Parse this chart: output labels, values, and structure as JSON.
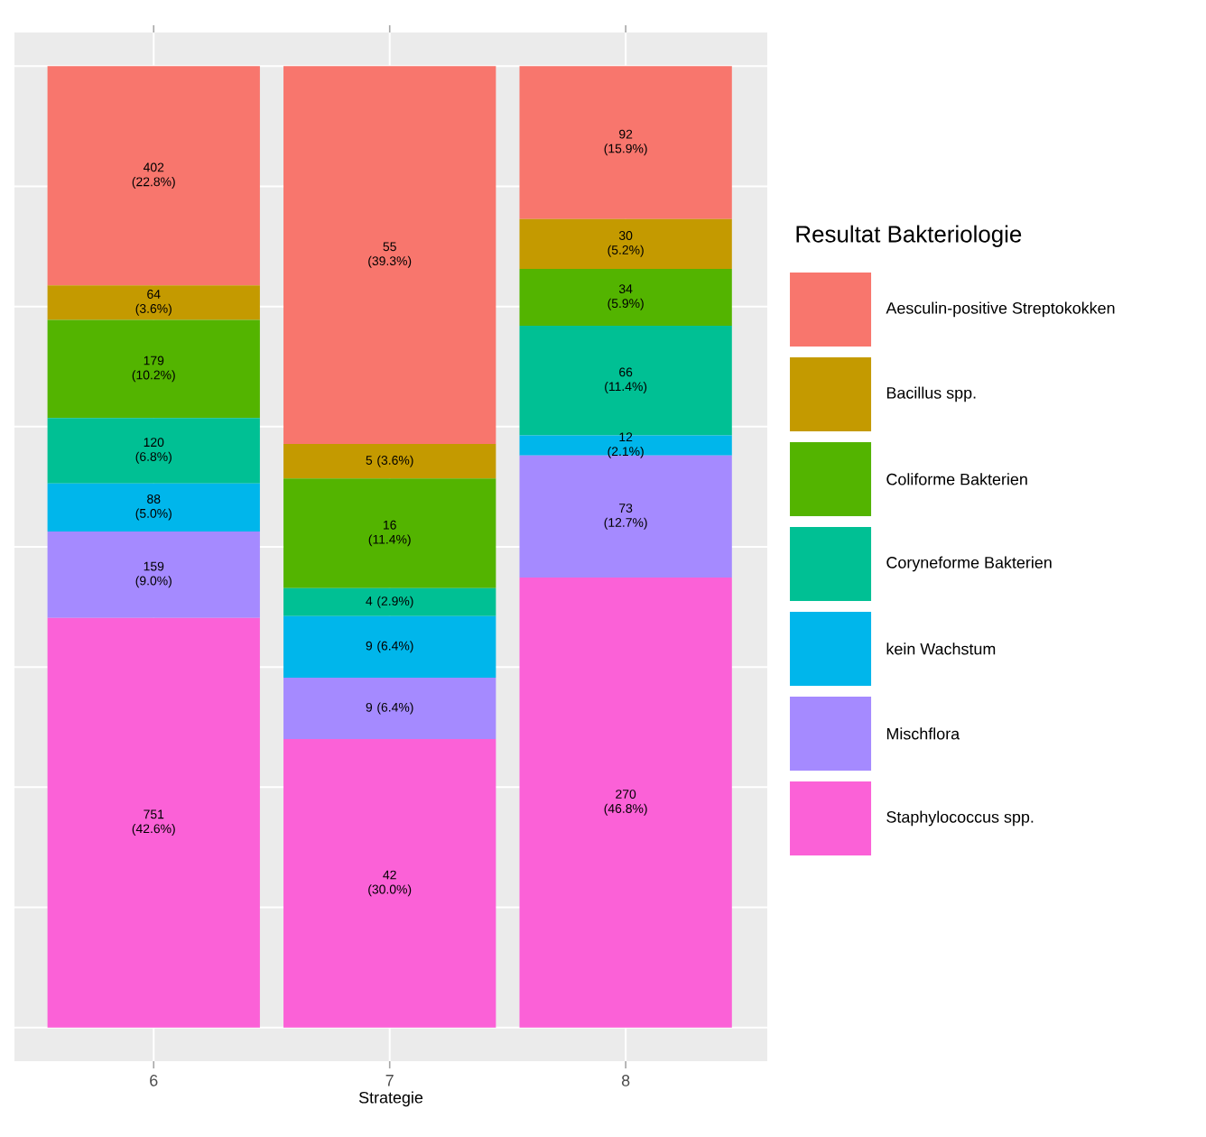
{
  "chart_data": {
    "type": "bar",
    "stacked": true,
    "xlabel": "Strategie",
    "legend_title": "Resultat Bakteriologie",
    "categories": [
      "6",
      "7",
      "8"
    ],
    "tick_labels": "x",
    "grid": true,
    "legend": "right",
    "series": [
      {
        "name": "Staphylococcus spp.",
        "color": "#fb61d7",
        "values": [
          42.6,
          30.0,
          46.8
        ],
        "value_labels": [
          "751 (42.6%)",
          "42 (30.0%)",
          "270 (46.8%)"
        ]
      },
      {
        "name": "Mischflora",
        "color": "#a58aff",
        "values": [
          9.0,
          6.4,
          12.7
        ],
        "value_labels": [
          "159 (9.0%)",
          "9 (6.4%)",
          "73 (12.7%)"
        ]
      },
      {
        "name": "kein Wachstum",
        "color": "#00b6eb",
        "values": [
          5.0,
          6.4,
          2.1
        ],
        "value_labels": [
          "88 (5.0%)",
          "9 (6.4%)",
          "12 (2.1%)"
        ]
      },
      {
        "name": "Coryneforme Bakterien",
        "color": "#00c094",
        "values": [
          6.8,
          2.9,
          11.4
        ],
        "value_labels": [
          "120 (6.8%)",
          "4 (2.9%)",
          "66 (11.4%)"
        ]
      },
      {
        "name": "Coliforme Bakterien",
        "color": "#53b400",
        "values": [
          10.2,
          11.4,
          5.9
        ],
        "value_labels": [
          "179 (10.2%)",
          "16 (11.4%)",
          "34 (5.9%)"
        ]
      },
      {
        "name": "Bacillus spp.",
        "color": "#c49a00",
        "values": [
          3.6,
          3.6,
          5.2
        ],
        "value_labels": [
          "64 (3.6%)",
          "5 (3.6%)",
          "30 (5.2%)"
        ]
      },
      {
        "name": "Aesculin-positive Streptokokken",
        "color": "#f8766d",
        "values": [
          22.8,
          39.3,
          15.9
        ],
        "value_labels": [
          "402 (22.8%)",
          "55 (39.3%)",
          "92 (15.9%)"
        ]
      }
    ]
  }
}
